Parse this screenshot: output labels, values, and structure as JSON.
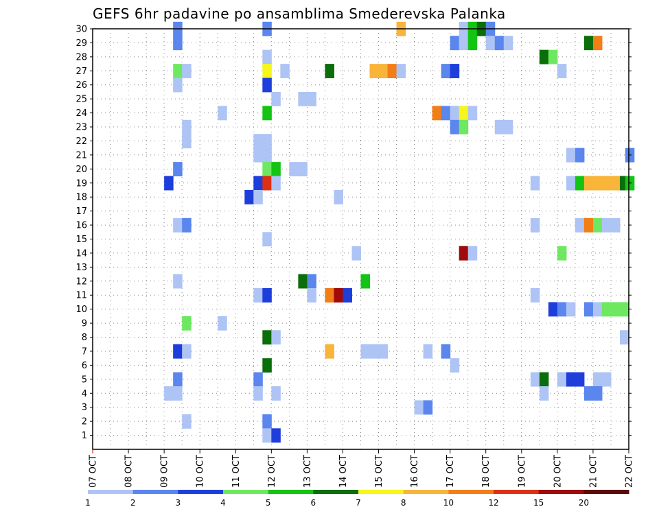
{
  "chart_data": {
    "type": "heatmap",
    "title": "GEFS 6hr padavine po ansamblima Smederevska Palanka",
    "xlabel": "",
    "ylabel": "",
    "x_tick_labels": [
      "07 OCT",
      "08 OCT",
      "09 OCT",
      "10 OCT",
      "11 OCT",
      "12 OCT",
      "13 OCT",
      "14 OCT",
      "15 OCT",
      "16 OCT",
      "17 OCT",
      "18 OCT",
      "19 OCT",
      "20 OCT",
      "21 OCT",
      "22 OCT"
    ],
    "x_range_days": [
      0,
      15
    ],
    "y_tick_labels": [
      "1",
      "2",
      "3",
      "4",
      "5",
      "6",
      "7",
      "8",
      "9",
      "10",
      "11",
      "12",
      "13",
      "14",
      "15",
      "16",
      "17",
      "18",
      "19",
      "20",
      "21",
      "22",
      "23",
      "24",
      "25",
      "26",
      "27",
      "28",
      "29",
      "30"
    ],
    "y_range": [
      0,
      30
    ],
    "grid": true,
    "colorbar": {
      "labels": [
        "1",
        "2",
        "3",
        "4",
        "5",
        "6",
        "7",
        "8",
        "10",
        "12",
        "15",
        "20"
      ],
      "colors": [
        "#aec4f5",
        "#5a86ee",
        "#1e3edc",
        "#6ee860",
        "#14c414",
        "#0a6e0a",
        "#f6f61a",
        "#f9b43a",
        "#f27e18",
        "#dc3014",
        "#a00a0a",
        "#5e0808"
      ]
    },
    "cells": [
      {
        "member": 30,
        "day": 2.25,
        "c": 2
      },
      {
        "member": 30,
        "day": 4.75,
        "c": 2
      },
      {
        "member": 30,
        "day": 8.5,
        "c": 8
      },
      {
        "member": 30,
        "day": 10.25,
        "c": 1
      },
      {
        "member": 30,
        "day": 10.5,
        "c": 5
      },
      {
        "member": 30,
        "day": 10.75,
        "c": 6
      },
      {
        "member": 30,
        "day": 11.0,
        "c": 2
      },
      {
        "member": 29,
        "day": 2.25,
        "c": 2
      },
      {
        "member": 29,
        "day": 10.0,
        "c": 2
      },
      {
        "member": 29,
        "day": 10.25,
        "c": 1
      },
      {
        "member": 29,
        "day": 10.5,
        "c": 5
      },
      {
        "member": 29,
        "day": 11.0,
        "c": 1
      },
      {
        "member": 29,
        "day": 11.25,
        "c": 2
      },
      {
        "member": 29,
        "day": 11.5,
        "c": 1
      },
      {
        "member": 29,
        "day": 13.75,
        "c": 6
      },
      {
        "member": 29,
        "day": 14.0,
        "c": 9
      },
      {
        "member": 28,
        "day": 4.75,
        "c": 1
      },
      {
        "member": 28,
        "day": 12.5,
        "c": 6
      },
      {
        "member": 28,
        "day": 12.75,
        "c": 4
      },
      {
        "member": 27,
        "day": 2.25,
        "c": 4
      },
      {
        "member": 27,
        "day": 2.5,
        "c": 1
      },
      {
        "member": 27,
        "day": 4.75,
        "c": 7
      },
      {
        "member": 27,
        "day": 5.25,
        "c": 1
      },
      {
        "member": 27,
        "day": 6.5,
        "c": 6
      },
      {
        "member": 27,
        "day": 7.75,
        "c": 8
      },
      {
        "member": 27,
        "day": 8.0,
        "c": 8
      },
      {
        "member": 27,
        "day": 8.25,
        "c": 9
      },
      {
        "member": 27,
        "day": 8.5,
        "c": 1
      },
      {
        "member": 27,
        "day": 9.75,
        "c": 2
      },
      {
        "member": 27,
        "day": 10.0,
        "c": 3
      },
      {
        "member": 27,
        "day": 13.0,
        "c": 1
      },
      {
        "member": 26,
        "day": 2.25,
        "c": 1
      },
      {
        "member": 26,
        "day": 4.75,
        "c": 3
      },
      {
        "member": 25,
        "day": 5.0,
        "c": 1
      },
      {
        "member": 25,
        "day": 5.75,
        "c": 1
      },
      {
        "member": 25,
        "day": 6.0,
        "c": 1
      },
      {
        "member": 24,
        "day": 3.5,
        "c": 1
      },
      {
        "member": 24,
        "day": 4.75,
        "c": 5
      },
      {
        "member": 24,
        "day": 9.5,
        "c": 9
      },
      {
        "member": 24,
        "day": 9.75,
        "c": 2
      },
      {
        "member": 24,
        "day": 10.0,
        "c": 1
      },
      {
        "member": 24,
        "day": 10.25,
        "c": 7
      },
      {
        "member": 24,
        "day": 10.5,
        "c": 1
      },
      {
        "member": 23,
        "day": 2.5,
        "c": 1
      },
      {
        "member": 23,
        "day": 10.0,
        "c": 2
      },
      {
        "member": 23,
        "day": 10.25,
        "c": 4
      },
      {
        "member": 23,
        "day": 11.25,
        "c": 1
      },
      {
        "member": 23,
        "day": 11.5,
        "c": 1
      },
      {
        "member": 22,
        "day": 2.5,
        "c": 1
      },
      {
        "member": 22,
        "day": 4.5,
        "c": 1
      },
      {
        "member": 22,
        "day": 4.75,
        "c": 1
      },
      {
        "member": 21,
        "day": 4.5,
        "c": 1
      },
      {
        "member": 21,
        "day": 4.75,
        "c": 1
      },
      {
        "member": 21,
        "day": 13.25,
        "c": 1
      },
      {
        "member": 21,
        "day": 13.5,
        "c": 2
      },
      {
        "member": 21,
        "day": 14.9,
        "c": 2
      },
      {
        "member": 20,
        "day": 2.25,
        "c": 2
      },
      {
        "member": 20,
        "day": 4.75,
        "c": 4
      },
      {
        "member": 20,
        "day": 5.0,
        "c": 5
      },
      {
        "member": 20,
        "day": 5.5,
        "c": 1
      },
      {
        "member": 20,
        "day": 5.75,
        "c": 1
      },
      {
        "member": 19,
        "day": 2.0,
        "c": 3
      },
      {
        "member": 19,
        "day": 4.5,
        "c": 3
      },
      {
        "member": 19,
        "day": 4.75,
        "c": 10
      },
      {
        "member": 19,
        "day": 5.0,
        "c": 1
      },
      {
        "member": 19,
        "day": 12.25,
        "c": 1
      },
      {
        "member": 19,
        "day": 13.25,
        "c": 1
      },
      {
        "member": 19,
        "day": 13.5,
        "c": 5
      },
      {
        "member": 19,
        "day": 13.75,
        "c": 8
      },
      {
        "member": 19,
        "day": 14.0,
        "c": 8
      },
      {
        "member": 19,
        "day": 14.25,
        "c": 8
      },
      {
        "member": 19,
        "day": 14.5,
        "c": 8
      },
      {
        "member": 19,
        "day": 14.75,
        "c": 6
      },
      {
        "member": 19,
        "day": 14.9,
        "c": 5
      },
      {
        "member": 18,
        "day": 4.25,
        "c": 3
      },
      {
        "member": 18,
        "day": 4.5,
        "c": 1
      },
      {
        "member": 18,
        "day": 6.75,
        "c": 1
      },
      {
        "member": 16,
        "day": 2.25,
        "c": 1
      },
      {
        "member": 16,
        "day": 2.5,
        "c": 2
      },
      {
        "member": 16,
        "day": 12.25,
        "c": 1
      },
      {
        "member": 16,
        "day": 13.5,
        "c": 1
      },
      {
        "member": 16,
        "day": 13.75,
        "c": 9
      },
      {
        "member": 16,
        "day": 14.0,
        "c": 4
      },
      {
        "member": 16,
        "day": 14.25,
        "c": 1
      },
      {
        "member": 16,
        "day": 14.5,
        "c": 1
      },
      {
        "member": 15,
        "day": 4.75,
        "c": 1
      },
      {
        "member": 14,
        "day": 7.25,
        "c": 1
      },
      {
        "member": 14,
        "day": 10.25,
        "c": 11
      },
      {
        "member": 14,
        "day": 10.5,
        "c": 1
      },
      {
        "member": 14,
        "day": 13.0,
        "c": 4
      },
      {
        "member": 12,
        "day": 2.25,
        "c": 1
      },
      {
        "member": 12,
        "day": 5.75,
        "c": 6
      },
      {
        "member": 12,
        "day": 6.0,
        "c": 2
      },
      {
        "member": 12,
        "day": 7.5,
        "c": 5
      },
      {
        "member": 11,
        "day": 4.5,
        "c": 1
      },
      {
        "member": 11,
        "day": 4.75,
        "c": 3
      },
      {
        "member": 11,
        "day": 6.0,
        "c": 1
      },
      {
        "member": 11,
        "day": 6.5,
        "c": 9
      },
      {
        "member": 11,
        "day": 6.75,
        "c": 11
      },
      {
        "member": 11,
        "day": 7.0,
        "c": 3
      },
      {
        "member": 11,
        "day": 12.25,
        "c": 1
      },
      {
        "member": 10,
        "day": 12.75,
        "c": 3
      },
      {
        "member": 10,
        "day": 13.0,
        "c": 2
      },
      {
        "member": 10,
        "day": 13.25,
        "c": 1
      },
      {
        "member": 10,
        "day": 13.75,
        "c": 2
      },
      {
        "member": 10,
        "day": 14.0,
        "c": 1
      },
      {
        "member": 10,
        "day": 14.25,
        "c": 4
      },
      {
        "member": 10,
        "day": 14.5,
        "c": 4
      },
      {
        "member": 10,
        "day": 14.75,
        "c": 4
      },
      {
        "member": 9,
        "day": 2.5,
        "c": 4
      },
      {
        "member": 9,
        "day": 3.5,
        "c": 1
      },
      {
        "member": 8,
        "day": 4.75,
        "c": 6
      },
      {
        "member": 8,
        "day": 5.0,
        "c": 1
      },
      {
        "member": 8,
        "day": 14.75,
        "c": 1
      },
      {
        "member": 7,
        "day": 2.25,
        "c": 3
      },
      {
        "member": 7,
        "day": 2.5,
        "c": 1
      },
      {
        "member": 7,
        "day": 6.5,
        "c": 8
      },
      {
        "member": 7,
        "day": 7.5,
        "c": 1
      },
      {
        "member": 7,
        "day": 7.75,
        "c": 1
      },
      {
        "member": 7,
        "day": 8.0,
        "c": 1
      },
      {
        "member": 7,
        "day": 9.25,
        "c": 1
      },
      {
        "member": 7,
        "day": 9.75,
        "c": 2
      },
      {
        "member": 6,
        "day": 4.75,
        "c": 6
      },
      {
        "member": 6,
        "day": 10.0,
        "c": 1
      },
      {
        "member": 5,
        "day": 2.25,
        "c": 2
      },
      {
        "member": 5,
        "day": 4.5,
        "c": 2
      },
      {
        "member": 5,
        "day": 12.25,
        "c": 1
      },
      {
        "member": 5,
        "day": 12.5,
        "c": 6
      },
      {
        "member": 5,
        "day": 13.0,
        "c": 1
      },
      {
        "member": 5,
        "day": 13.25,
        "c": 3
      },
      {
        "member": 5,
        "day": 13.5,
        "c": 3
      },
      {
        "member": 5,
        "day": 14.0,
        "c": 1
      },
      {
        "member": 5,
        "day": 14.25,
        "c": 1
      },
      {
        "member": 4,
        "day": 2.0,
        "c": 1
      },
      {
        "member": 4,
        "day": 2.25,
        "c": 1
      },
      {
        "member": 4,
        "day": 4.5,
        "c": 1
      },
      {
        "member": 4,
        "day": 5.0,
        "c": 1
      },
      {
        "member": 4,
        "day": 12.5,
        "c": 1
      },
      {
        "member": 4,
        "day": 13.75,
        "c": 2
      },
      {
        "member": 4,
        "day": 14.0,
        "c": 2
      },
      {
        "member": 3,
        "day": 9.0,
        "c": 1
      },
      {
        "member": 3,
        "day": 9.25,
        "c": 2
      },
      {
        "member": 2,
        "day": 2.5,
        "c": 1
      },
      {
        "member": 2,
        "day": 4.75,
        "c": 2
      },
      {
        "member": 1,
        "day": 4.75,
        "c": 1
      },
      {
        "member": 1,
        "day": 5.0,
        "c": 3
      }
    ]
  }
}
